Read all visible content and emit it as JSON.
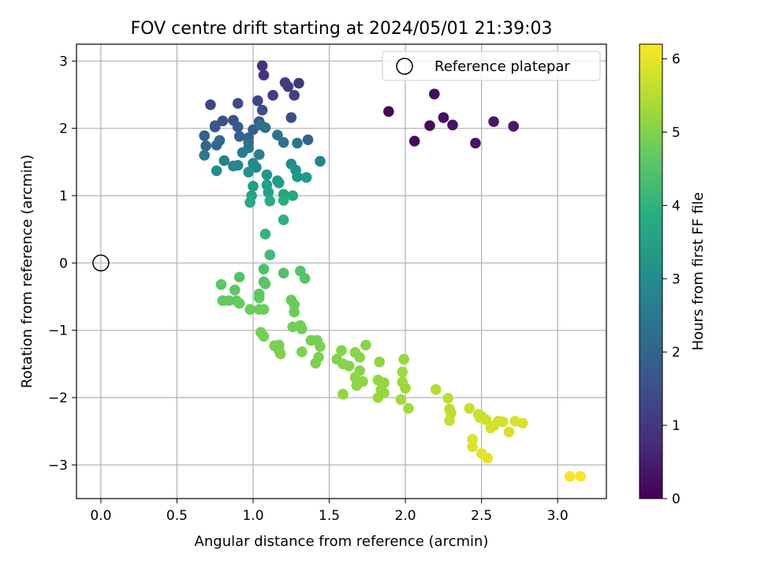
{
  "chart_data": {
    "type": "scatter",
    "title": "FOV centre drift starting at 2024/05/01 21:39:03",
    "xlabel": "Angular distance from reference (arcmin)",
    "ylabel": "Rotation from reference (arcmin)",
    "xlim": [
      -0.16,
      3.32
    ],
    "ylim": [
      -3.5,
      3.25
    ],
    "xticks": [
      "0.0",
      "0.5",
      "1.0",
      "1.5",
      "2.0",
      "2.5",
      "3.0"
    ],
    "yticks": [
      "−3",
      "−2",
      "−1",
      "0",
      "1",
      "2",
      "3"
    ],
    "grid": true,
    "legend": {
      "placement": "top-right",
      "entries": [
        "Reference platepar"
      ]
    },
    "reference_point": {
      "x": 0.0,
      "y": 0.0
    },
    "colorbar": {
      "label": "Hours from first FF file",
      "colormap": "viridis",
      "range": [
        0,
        6.2
      ],
      "ticks": [
        "0",
        "1",
        "2",
        "3",
        "4",
        "5",
        "6"
      ]
    },
    "points": [
      {
        "x": 1.89,
        "y": 2.25,
        "c": 0.05
      },
      {
        "x": 2.06,
        "y": 1.81,
        "c": 0.1
      },
      {
        "x": 2.16,
        "y": 2.04,
        "c": 0.15
      },
      {
        "x": 2.19,
        "y": 2.51,
        "c": 0.2
      },
      {
        "x": 2.25,
        "y": 2.16,
        "c": 0.25
      },
      {
        "x": 2.31,
        "y": 2.05,
        "c": 0.3
      },
      {
        "x": 2.46,
        "y": 1.78,
        "c": 0.35
      },
      {
        "x": 2.58,
        "y": 2.1,
        "c": 0.4
      },
      {
        "x": 2.71,
        "y": 2.03,
        "c": 0.45
      },
      {
        "x": 1.06,
        "y": 2.93,
        "c": 0.9
      },
      {
        "x": 1.07,
        "y": 2.79,
        "c": 0.95
      },
      {
        "x": 1.3,
        "y": 2.67,
        "c": 1.0
      },
      {
        "x": 1.21,
        "y": 2.68,
        "c": 1.05
      },
      {
        "x": 1.23,
        "y": 2.62,
        "c": 1.1
      },
      {
        "x": 1.13,
        "y": 2.49,
        "c": 1.15
      },
      {
        "x": 1.27,
        "y": 2.49,
        "c": 1.2
      },
      {
        "x": 1.03,
        "y": 2.41,
        "c": 1.25
      },
      {
        "x": 0.72,
        "y": 2.35,
        "c": 1.3
      },
      {
        "x": 0.9,
        "y": 2.37,
        "c": 1.35
      },
      {
        "x": 1.06,
        "y": 2.27,
        "c": 1.4
      },
      {
        "x": 1.25,
        "y": 2.16,
        "c": 1.45
      },
      {
        "x": 0.8,
        "y": 2.11,
        "c": 1.5
      },
      {
        "x": 0.87,
        "y": 2.12,
        "c": 1.55
      },
      {
        "x": 1.04,
        "y": 2.1,
        "c": 1.6
      },
      {
        "x": 0.75,
        "y": 2.04,
        "c": 1.65
      },
      {
        "x": 0.75,
        "y": 2.02,
        "c": 1.7
      },
      {
        "x": 0.9,
        "y": 2.02,
        "c": 1.75
      },
      {
        "x": 1.0,
        "y": 1.98,
        "c": 1.8
      },
      {
        "x": 0.68,
        "y": 1.89,
        "c": 1.85
      },
      {
        "x": 0.91,
        "y": 1.88,
        "c": 1.9
      },
      {
        "x": 0.97,
        "y": 1.86,
        "c": 1.95
      },
      {
        "x": 1.36,
        "y": 1.83,
        "c": 2.0
      },
      {
        "x": 0.69,
        "y": 1.74,
        "c": 2.05
      },
      {
        "x": 0.76,
        "y": 1.75,
        "c": 2.1
      },
      {
        "x": 0.78,
        "y": 1.82,
        "c": 2.15
      },
      {
        "x": 0.97,
        "y": 1.79,
        "c": 2.2
      },
      {
        "x": 1.05,
        "y": 2.05,
        "c": 2.25
      },
      {
        "x": 1.08,
        "y": 2.01,
        "c": 2.3
      },
      {
        "x": 1.16,
        "y": 1.9,
        "c": 2.35
      },
      {
        "x": 1.2,
        "y": 1.79,
        "c": 2.4
      },
      {
        "x": 1.29,
        "y": 1.78,
        "c": 2.45
      },
      {
        "x": 0.97,
        "y": 1.71,
        "c": 2.5
      },
      {
        "x": 0.68,
        "y": 1.6,
        "c": 2.55
      },
      {
        "x": 0.93,
        "y": 1.64,
        "c": 2.6
      },
      {
        "x": 1.04,
        "y": 1.61,
        "c": 2.65
      },
      {
        "x": 0.81,
        "y": 1.52,
        "c": 2.7
      },
      {
        "x": 1.44,
        "y": 1.51,
        "c": 2.75
      },
      {
        "x": 0.87,
        "y": 1.44,
        "c": 2.8
      },
      {
        "x": 0.9,
        "y": 1.45,
        "c": 2.85
      },
      {
        "x": 1.0,
        "y": 1.48,
        "c": 2.9
      },
      {
        "x": 1.02,
        "y": 1.42,
        "c": 2.95
      },
      {
        "x": 1.25,
        "y": 1.47,
        "c": 3.0
      },
      {
        "x": 0.76,
        "y": 1.37,
        "c": 3.05
      },
      {
        "x": 0.97,
        "y": 1.35,
        "c": 3.1
      },
      {
        "x": 1.28,
        "y": 1.38,
        "c": 3.15
      },
      {
        "x": 1.09,
        "y": 1.31,
        "c": 3.2
      },
      {
        "x": 1.29,
        "y": 1.28,
        "c": 3.25
      },
      {
        "x": 1.35,
        "y": 1.27,
        "c": 3.3
      },
      {
        "x": 1.16,
        "y": 1.22,
        "c": 3.35
      },
      {
        "x": 1.17,
        "y": 1.19,
        "c": 3.4
      },
      {
        "x": 1.0,
        "y": 1.14,
        "c": 3.45
      },
      {
        "x": 1.09,
        "y": 1.16,
        "c": 3.5
      },
      {
        "x": 1.1,
        "y": 1.05,
        "c": 3.55
      },
      {
        "x": 0.99,
        "y": 1.0,
        "c": 3.6
      },
      {
        "x": 1.2,
        "y": 1.02,
        "c": 3.65
      },
      {
        "x": 1.26,
        "y": 1.0,
        "c": 3.7
      },
      {
        "x": 0.98,
        "y": 0.9,
        "c": 3.75
      },
      {
        "x": 1.11,
        "y": 0.92,
        "c": 3.8
      },
      {
        "x": 1.2,
        "y": 0.93,
        "c": 3.85
      },
      {
        "x": 1.2,
        "y": 0.64,
        "c": 3.95
      },
      {
        "x": 1.08,
        "y": 0.43,
        "c": 4.05
      },
      {
        "x": 1.11,
        "y": 0.12,
        "c": 4.25
      },
      {
        "x": 1.07,
        "y": -0.09,
        "c": 4.4
      },
      {
        "x": 1.2,
        "y": -0.15,
        "c": 4.45
      },
      {
        "x": 1.31,
        "y": -0.12,
        "c": 4.5
      },
      {
        "x": 0.91,
        "y": -0.21,
        "c": 4.5
      },
      {
        "x": 1.34,
        "y": -0.23,
        "c": 4.55
      },
      {
        "x": 1.07,
        "y": -0.28,
        "c": 4.55
      },
      {
        "x": 0.79,
        "y": -0.32,
        "c": 4.6
      },
      {
        "x": 1.08,
        "y": -0.31,
        "c": 4.6
      },
      {
        "x": 0.88,
        "y": -0.4,
        "c": 4.6
      },
      {
        "x": 1.04,
        "y": -0.46,
        "c": 4.65
      },
      {
        "x": 1.04,
        "y": -0.52,
        "c": 4.65
      },
      {
        "x": 0.8,
        "y": -0.56,
        "c": 4.7
      },
      {
        "x": 0.84,
        "y": -0.56,
        "c": 4.7
      },
      {
        "x": 0.89,
        "y": -0.56,
        "c": 4.7
      },
      {
        "x": 0.91,
        "y": -0.6,
        "c": 4.75
      },
      {
        "x": 1.25,
        "y": -0.55,
        "c": 4.75
      },
      {
        "x": 1.27,
        "y": -0.62,
        "c": 4.75
      },
      {
        "x": 0.98,
        "y": -0.69,
        "c": 4.8
      },
      {
        "x": 1.04,
        "y": -0.69,
        "c": 4.8
      },
      {
        "x": 1.07,
        "y": -0.69,
        "c": 4.8
      },
      {
        "x": 1.27,
        "y": -0.73,
        "c": 4.8
      },
      {
        "x": 1.26,
        "y": -0.95,
        "c": 4.85
      },
      {
        "x": 1.31,
        "y": -0.93,
        "c": 4.85
      },
      {
        "x": 1.32,
        "y": -0.98,
        "c": 4.85
      },
      {
        "x": 1.05,
        "y": -1.03,
        "c": 4.9
      },
      {
        "x": 1.07,
        "y": -1.09,
        "c": 4.9
      },
      {
        "x": 1.38,
        "y": -1.15,
        "c": 4.9
      },
      {
        "x": 1.42,
        "y": -1.15,
        "c": 4.9
      },
      {
        "x": 1.44,
        "y": -1.24,
        "c": 4.95
      },
      {
        "x": 1.14,
        "y": -1.23,
        "c": 4.95
      },
      {
        "x": 1.17,
        "y": -1.22,
        "c": 4.95
      },
      {
        "x": 1.17,
        "y": -1.3,
        "c": 4.95
      },
      {
        "x": 1.18,
        "y": -1.35,
        "c": 5.0
      },
      {
        "x": 1.32,
        "y": -1.32,
        "c": 5.0
      },
      {
        "x": 1.43,
        "y": -1.4,
        "c": 5.0
      },
      {
        "x": 1.41,
        "y": -1.49,
        "c": 5.0
      },
      {
        "x": 1.58,
        "y": -1.3,
        "c": 5.05
      },
      {
        "x": 1.55,
        "y": -1.43,
        "c": 5.05
      },
      {
        "x": 1.59,
        "y": -1.5,
        "c": 5.05
      },
      {
        "x": 1.63,
        "y": -1.53,
        "c": 5.05
      },
      {
        "x": 1.67,
        "y": -1.33,
        "c": 5.1
      },
      {
        "x": 1.7,
        "y": -1.4,
        "c": 5.1
      },
      {
        "x": 1.74,
        "y": -1.22,
        "c": 5.1
      },
      {
        "x": 1.7,
        "y": -1.6,
        "c": 5.1
      },
      {
        "x": 1.83,
        "y": -1.47,
        "c": 5.15
      },
      {
        "x": 1.67,
        "y": -1.7,
        "c": 5.15
      },
      {
        "x": 1.68,
        "y": -1.82,
        "c": 5.15
      },
      {
        "x": 1.72,
        "y": -1.76,
        "c": 5.15
      },
      {
        "x": 1.59,
        "y": -1.95,
        "c": 5.2
      },
      {
        "x": 1.82,
        "y": -1.74,
        "c": 5.2
      },
      {
        "x": 1.86,
        "y": -1.78,
        "c": 5.2
      },
      {
        "x": 1.84,
        "y": -1.88,
        "c": 5.2
      },
      {
        "x": 1.86,
        "y": -1.93,
        "c": 5.25
      },
      {
        "x": 1.82,
        "y": -2.0,
        "c": 5.25
      },
      {
        "x": 1.99,
        "y": -1.43,
        "c": 5.25
      },
      {
        "x": 1.98,
        "y": -1.62,
        "c": 5.3
      },
      {
        "x": 1.98,
        "y": -1.77,
        "c": 5.3
      },
      {
        "x": 2.0,
        "y": -1.86,
        "c": 5.3
      },
      {
        "x": 1.97,
        "y": -2.03,
        "c": 5.35
      },
      {
        "x": 2.02,
        "y": -2.16,
        "c": 5.35
      },
      {
        "x": 2.2,
        "y": -1.88,
        "c": 5.5
      },
      {
        "x": 2.28,
        "y": -2.01,
        "c": 5.55
      },
      {
        "x": 2.29,
        "y": -2.17,
        "c": 5.6
      },
      {
        "x": 2.3,
        "y": -2.23,
        "c": 5.6
      },
      {
        "x": 2.29,
        "y": -2.34,
        "c": 5.65
      },
      {
        "x": 2.42,
        "y": -2.16,
        "c": 5.7
      },
      {
        "x": 2.48,
        "y": -2.25,
        "c": 5.7
      },
      {
        "x": 2.49,
        "y": -2.3,
        "c": 5.75
      },
      {
        "x": 2.5,
        "y": -2.28,
        "c": 5.75
      },
      {
        "x": 2.53,
        "y": -2.33,
        "c": 5.75
      },
      {
        "x": 2.56,
        "y": -2.45,
        "c": 5.8
      },
      {
        "x": 2.58,
        "y": -2.42,
        "c": 5.8
      },
      {
        "x": 2.61,
        "y": -2.35,
        "c": 5.8
      },
      {
        "x": 2.64,
        "y": -2.36,
        "c": 5.8
      },
      {
        "x": 2.68,
        "y": -2.51,
        "c": 5.85
      },
      {
        "x": 2.72,
        "y": -2.35,
        "c": 5.85
      },
      {
        "x": 2.77,
        "y": -2.38,
        "c": 5.85
      },
      {
        "x": 2.44,
        "y": -2.62,
        "c": 5.9
      },
      {
        "x": 2.44,
        "y": -2.73,
        "c": 5.9
      },
      {
        "x": 2.5,
        "y": -2.83,
        "c": 5.95
      },
      {
        "x": 2.54,
        "y": -2.9,
        "c": 5.95
      },
      {
        "x": 3.08,
        "y": -3.17,
        "c": 6.15
      },
      {
        "x": 3.15,
        "y": -3.17,
        "c": 6.15
      }
    ]
  }
}
